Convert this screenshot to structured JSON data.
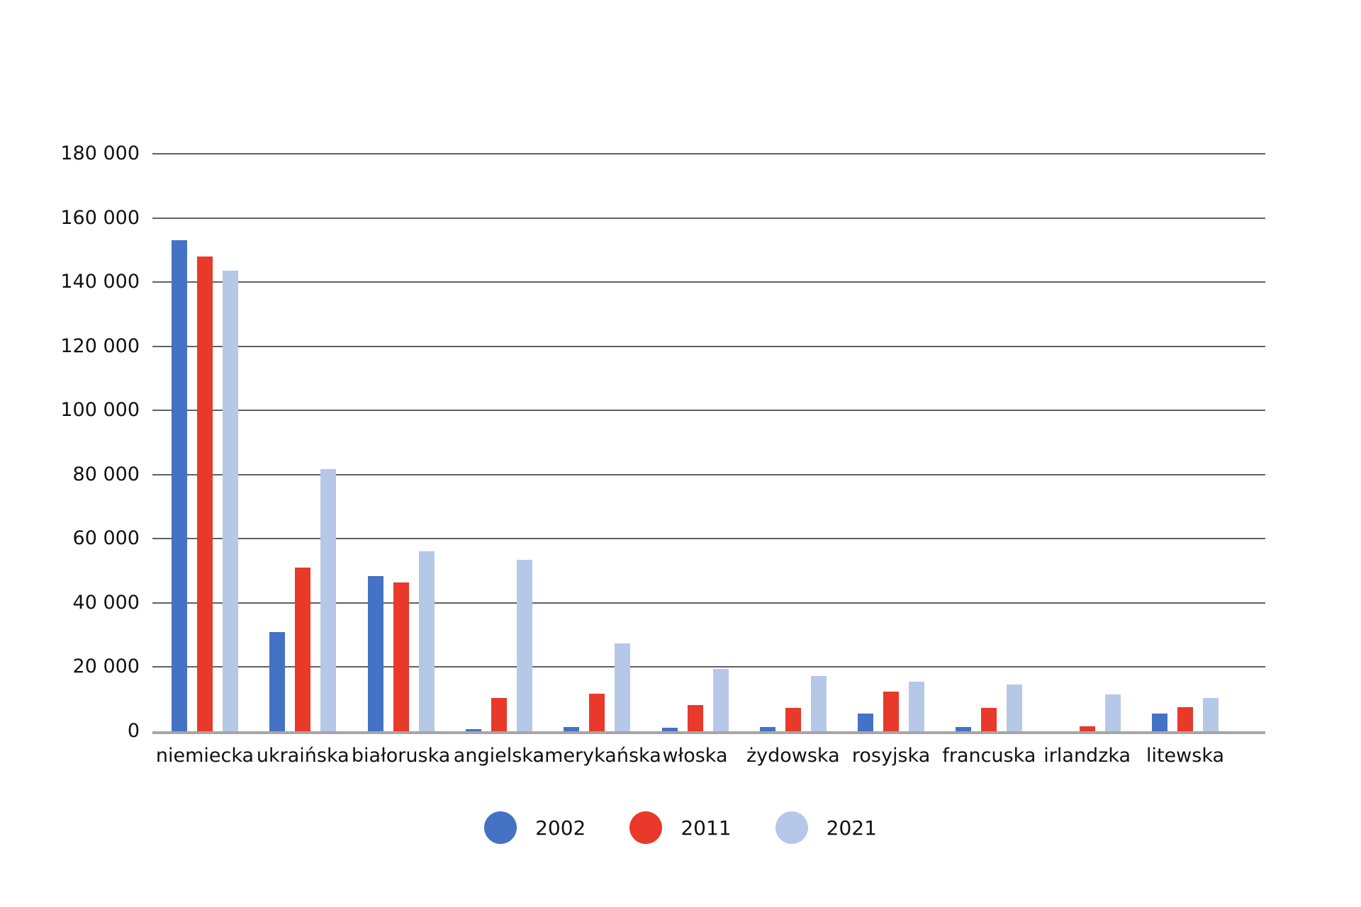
{
  "chart_data": {
    "type": "bar",
    "title": "",
    "categories": [
      "niemiecka",
      "ukraińska",
      "białoruska",
      "angielska",
      "amerykańska",
      "włoska",
      "żydowska",
      "rosyjska",
      "francuska",
      "irlandzka",
      "litewska"
    ],
    "series": [
      {
        "name": "2002",
        "color": "#4472C4",
        "values": [
          153000,
          31000,
          48300,
          700,
          1300,
          1200,
          1300,
          5500,
          1300,
          0,
          5600
        ]
      },
      {
        "name": "2011",
        "color": "#E8392B",
        "values": [
          148000,
          51000,
          46300,
          10300,
          11800,
          8200,
          7300,
          12300,
          7300,
          1600,
          7400
        ]
      },
      {
        "name": "2021",
        "color": "#B6C8E8",
        "values": [
          143500,
          81700,
          56200,
          53400,
          27300,
          19400,
          17200,
          15400,
          14600,
          11400,
          10400
        ]
      }
    ],
    "ylim": [
      0,
      180000
    ],
    "ytick_step": 20000,
    "ytick_labels": [
      "0",
      "20 000",
      "40 000",
      "60 000",
      "80 000",
      "100 000",
      "120 000",
      "140 000",
      "160 000",
      "180 000"
    ],
    "grid": "horizontal",
    "legend_position": "bottom",
    "background_color": "#ffffff",
    "gridline_color": "#616161",
    "axis_line_color": "#a6a6a6",
    "text_color": "#111111"
  }
}
